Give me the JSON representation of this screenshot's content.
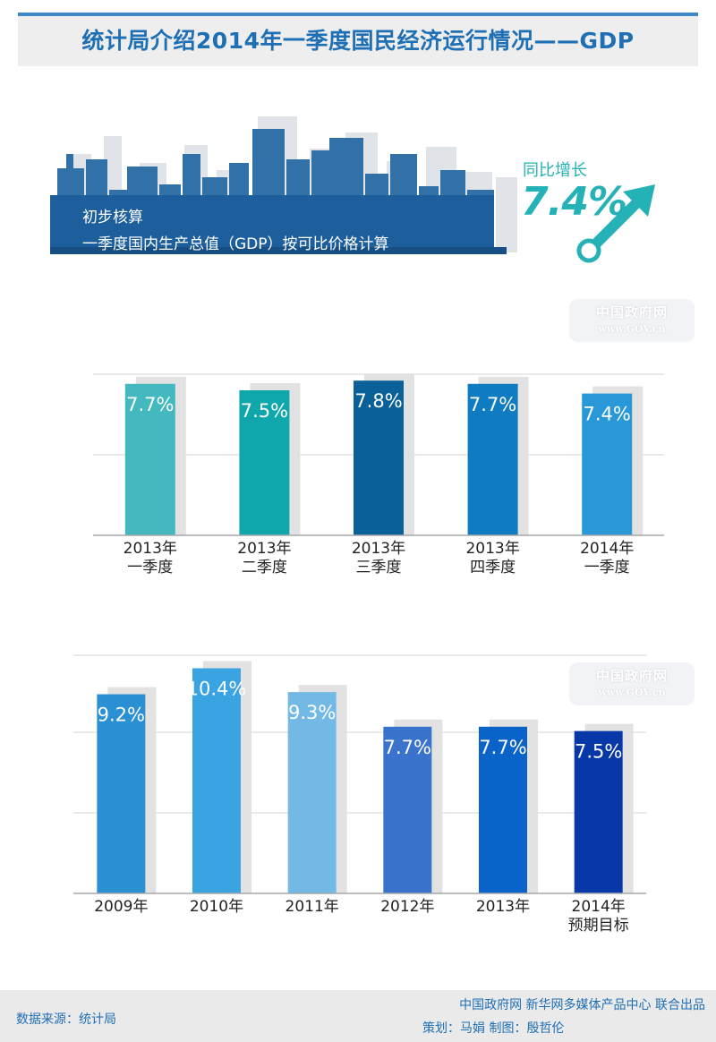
{
  "header": {
    "title": "统计局介绍2014年一季度国民经济运行情况——GDP"
  },
  "hero": {
    "line1": "初步核算",
    "line2": "一季度国内生产总值（GDP）按可比价格计算",
    "growth_label": "同比增长",
    "growth_value": "7.4%"
  },
  "watermark": {
    "cn": "中国政府网",
    "en": "www.GOV.cn"
  },
  "chart_data": [
    {
      "type": "bar",
      "categories": [
        [
          "2013年",
          "一季度"
        ],
        [
          "2013年",
          "二季度"
        ],
        [
          "2013年",
          "三季度"
        ],
        [
          "2013年",
          "四季度"
        ],
        [
          "2014年",
          "一季度"
        ]
      ],
      "values": [
        7.7,
        7.5,
        7.8,
        7.7,
        7.4
      ],
      "labels": [
        "7.7%",
        "7.5%",
        "7.8%",
        "7.7%",
        "7.4%"
      ],
      "colors": [
        "#43b8be",
        "#10a7ac",
        "#0a6198",
        "#0f7bc0",
        "#2998d8"
      ],
      "ylim": [
        3.0,
        8.0
      ],
      "grid": true,
      "title": "",
      "xlabel": "",
      "ylabel": ""
    },
    {
      "type": "bar",
      "categories": [
        [
          "2009年"
        ],
        [
          "2010年"
        ],
        [
          "2011年"
        ],
        [
          "2012年"
        ],
        [
          "2013年"
        ],
        [
          "2014年",
          "预期目标"
        ]
      ],
      "values": [
        9.2,
        10.4,
        9.3,
        7.7,
        7.7,
        7.5
      ],
      "labels": [
        "9.2%",
        "10.4%",
        "9.3%",
        "7.7%",
        "7.7%",
        "7.5%"
      ],
      "colors": [
        "#2b8fd4",
        "#3aa3e2",
        "#73b9e6",
        "#3a73cc",
        "#0a63c9",
        "#0838a8"
      ],
      "ylim": [
        0.0,
        11.0
      ],
      "grid": true,
      "title": "",
      "xlabel": "",
      "ylabel": ""
    }
  ],
  "footer": {
    "source": "数据来源：统计局",
    "line1": "中国政府网 新华网多媒体产品中心 联合出品",
    "line2": "策划：马娟  制图：殷哲伦"
  }
}
